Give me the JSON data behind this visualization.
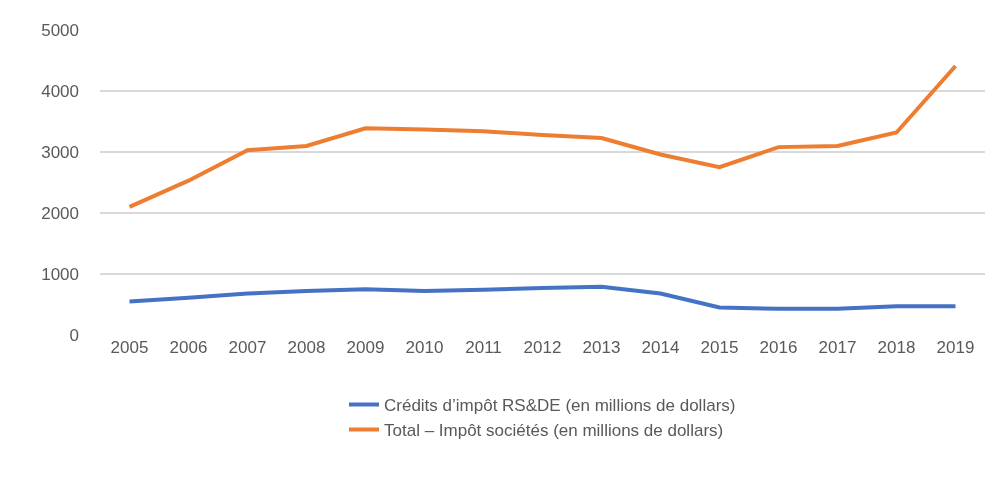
{
  "chart_data": {
    "type": "line",
    "categories": [
      "2005",
      "2006",
      "2007",
      "2008",
      "2009",
      "2010",
      "2011",
      "2012",
      "2013",
      "2014",
      "2015",
      "2016",
      "2017",
      "2018",
      "2019"
    ],
    "series": [
      {
        "name": "Crédits d’impôt RS&DE (en millions de dollars)",
        "color": "#4472c4",
        "values": [
          550,
          610,
          680,
          720,
          750,
          720,
          740,
          770,
          790,
          680,
          450,
          430,
          430,
          470,
          470
        ]
      },
      {
        "name": "Total – Impôt sociétés (en millions de dollars)",
        "color": "#ed7d31",
        "values": [
          2100,
          2530,
          3030,
          3100,
          3390,
          3370,
          3340,
          3280,
          3230,
          2960,
          2750,
          3080,
          3100,
          3320,
          4410
        ]
      }
    ],
    "ylim": [
      0,
      5000
    ],
    "yticks": [
      0,
      1000,
      2000,
      3000,
      4000,
      5000
    ],
    "grid": "y",
    "legend": "bottom",
    "marker": "none",
    "line_style": "solid"
  }
}
